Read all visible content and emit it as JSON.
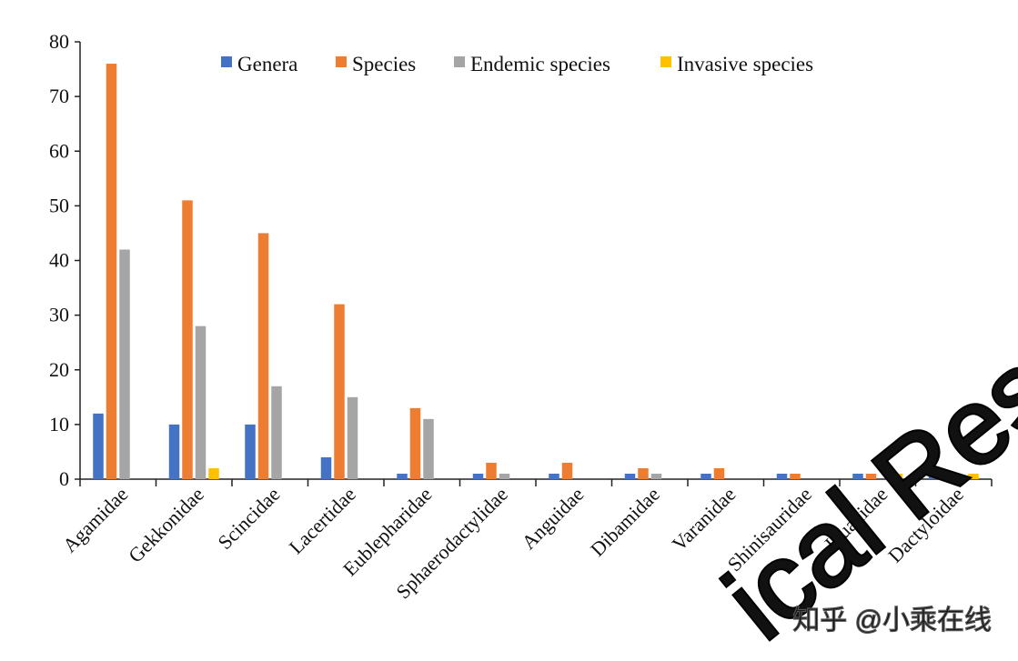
{
  "chart_data": {
    "type": "bar",
    "categories": [
      "Agamidae",
      "Gekkonidae",
      "Scincidae",
      "Lacertidae",
      "Eublepharidae",
      "Sphaerodactylidae",
      "Anguidae",
      "Dibamidae",
      "Varanidae",
      "Shinisauridae",
      "Iguanidae",
      "Dactyloidae"
    ],
    "series": [
      {
        "name": "Genera",
        "values": [
          12,
          10,
          10,
          4,
          1,
          1,
          1,
          1,
          1,
          1,
          1,
          1
        ]
      },
      {
        "name": "Species",
        "values": [
          76,
          51,
          45,
          32,
          13,
          3,
          3,
          2,
          2,
          1,
          1,
          1
        ]
      },
      {
        "name": "Endemic species",
        "values": [
          42,
          28,
          17,
          15,
          11,
          1,
          0,
          1,
          0,
          0,
          0,
          0
        ]
      },
      {
        "name": "Invasive species",
        "values": [
          0,
          2,
          0,
          0,
          0,
          0,
          0,
          0,
          0,
          0,
          1,
          1
        ]
      }
    ],
    "colors": {
      "Genera": "#4472C4",
      "Species": "#ED7D31",
      "Endemic species": "#A5A5A5",
      "Invasive species": "#FFC000"
    },
    "ylim": [
      0,
      80
    ],
    "yticks": [
      "0",
      "10",
      "20",
      "30",
      "40",
      "50",
      "60",
      "70",
      "80"
    ],
    "grid": false,
    "legend_position": "top"
  },
  "watermark": {
    "text": "ical Res",
    "site_text": "知乎 @小乘在线"
  }
}
